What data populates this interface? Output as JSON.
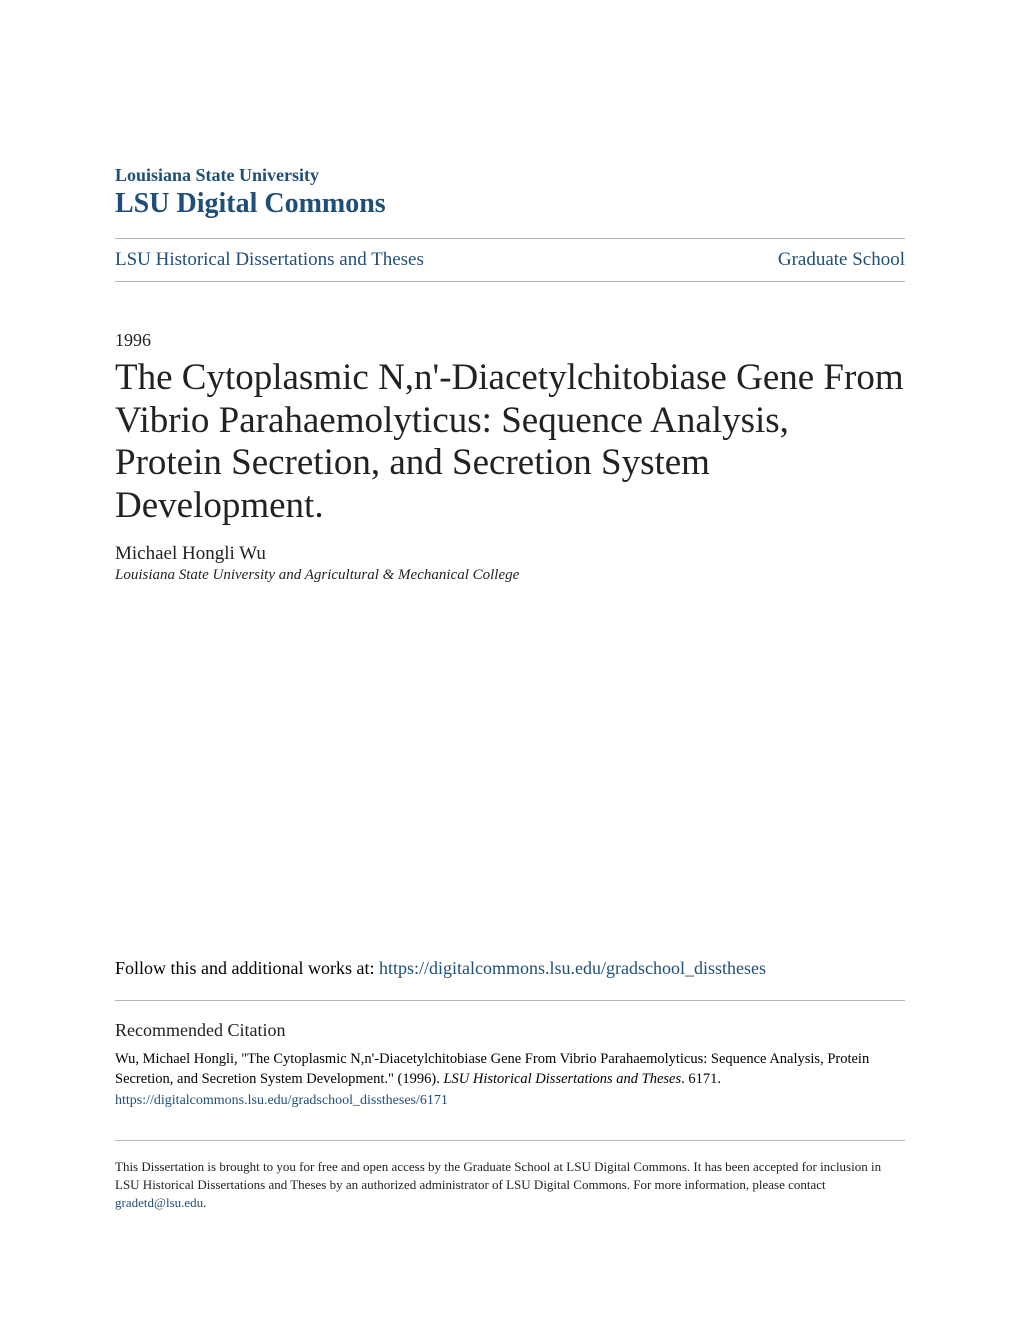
{
  "header": {
    "university": "Louisiana State University",
    "repository": "LSU Digital Commons"
  },
  "nav": {
    "left": "LSU Historical Dissertations and Theses",
    "right": "Graduate School"
  },
  "year": "1996",
  "title": "The Cytoplasmic N,n'-Diacetylchitobiase Gene From Vibrio Parahaemolyticus: Sequence Analysis, Protein Secretion, and Secretion System Development.",
  "author": "Michael Hongli Wu",
  "affiliation": "Louisiana State University and Agricultural & Mechanical College",
  "follow": {
    "prefix": "Follow this and additional works at: ",
    "link_text": "https://digitalcommons.lsu.edu/gradschool_disstheses"
  },
  "citation": {
    "heading": "Recommended Citation",
    "text_pre": "Wu, Michael Hongli, \"The Cytoplasmic N,n'-Diacetylchitobiase Gene From Vibrio Parahaemolyticus: Sequence Analysis, Protein Secretion, and Secretion System Development.\" (1996). ",
    "series": "LSU Historical Dissertations and Theses",
    "text_post": ". 6171.",
    "link_text": "https://digitalcommons.lsu.edu/gradschool_disstheses/6171"
  },
  "footer": {
    "text": "This Dissertation is brought to you for free and open access by the Graduate School at LSU Digital Commons. It has been accepted for inclusion in LSU Historical Dissertations and Theses by an authorized administrator of LSU Digital Commons. For more information, please contact ",
    "email": "gradetd@lsu.edu",
    "period": "."
  },
  "colors": {
    "link": "#1f4e79",
    "text": "#222222",
    "rule": "#b5b5b5",
    "background": "#ffffff"
  }
}
